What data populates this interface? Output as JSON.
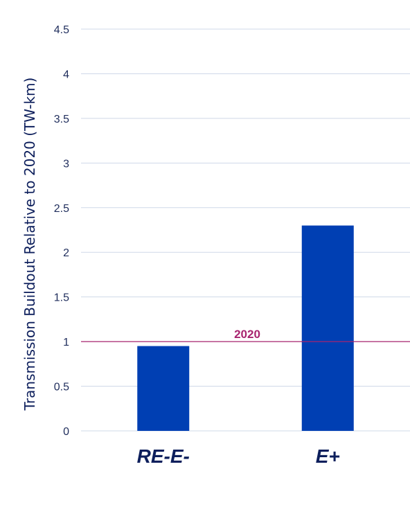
{
  "chart_data": {
    "type": "bar",
    "categories": [
      "RE-E-",
      "E+"
    ],
    "values": [
      0.95,
      2.3
    ],
    "ylabel": "Transmission Buildout Relative to 2020 (TW-km)",
    "ylim": [
      0,
      4.5
    ],
    "yticks": [
      "0",
      "0.5",
      "1",
      "1.5",
      "2",
      "2.5",
      "3",
      "3.5",
      "4",
      "4.5"
    ],
    "grid": true,
    "reference_line": {
      "value": 1,
      "label": "2020",
      "color": "#a8246f"
    },
    "bar_color": "#003fb3"
  }
}
